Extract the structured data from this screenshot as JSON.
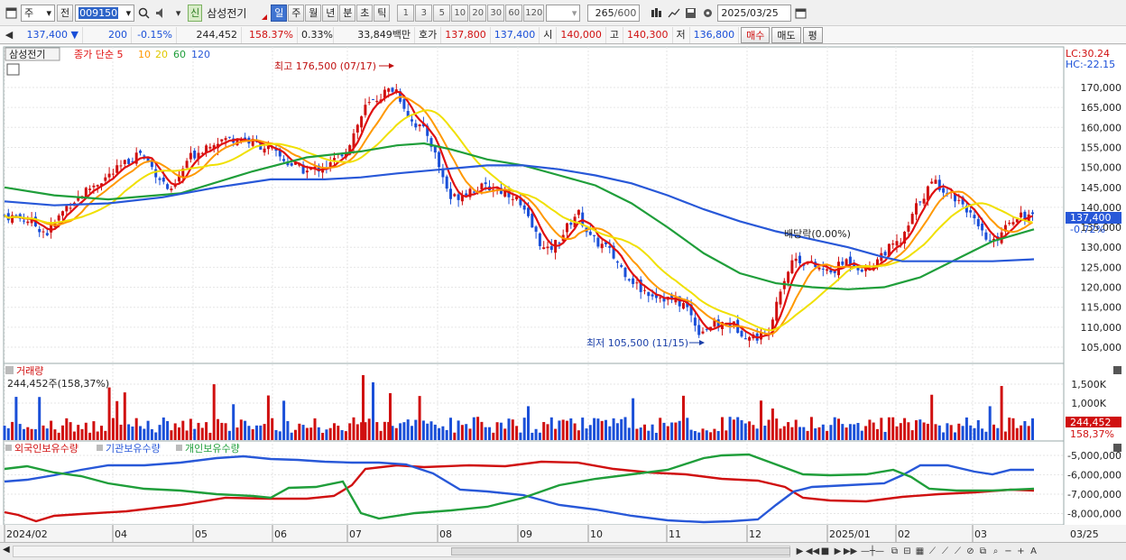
{
  "toolbar": {
    "market_label": "주",
    "prev_label": "전",
    "code": "009150",
    "stock_badge": "신",
    "stock_name": "삼성전기",
    "periods": [
      "일",
      "주",
      "월",
      "년",
      "분",
      "초",
      "틱"
    ],
    "active_period": "일",
    "numbers": [
      "1",
      "3",
      "5",
      "10",
      "20",
      "30",
      "60",
      "120"
    ],
    "count": "265",
    "count_max": "/600",
    "date": "2025/03/25"
  },
  "quote": {
    "price": "137,400",
    "change": "200",
    "change_pct": "-0.15%",
    "volume": "244,452",
    "volume_ratio": "158.37%",
    "turnover": "0.33%",
    "amount": "33,849백만",
    "ask_label": "호가",
    "ask": "137,800",
    "bid": "137,400",
    "open_label": "시",
    "open": "140,000",
    "high_label": "고",
    "high": "140,300",
    "low_label": "저",
    "low": "136,800",
    "buy_label": "매수",
    "sell_label": "매도",
    "eval_label": "평"
  },
  "price_panel": {
    "name_tag": "삼성전기",
    "ma_legend": [
      {
        "label": "종가 단순 5",
        "color": "#e01010"
      },
      {
        "label": "10",
        "color": "#ff9800"
      },
      {
        "label": "20",
        "color": "#f0e000"
      },
      {
        "label": "60",
        "color": "#1f9e3a"
      },
      {
        "label": "120",
        "color": "#2858d8"
      }
    ],
    "lc": "LC:30.24",
    "hc": "HC:-22.15",
    "high_annot": "최고 176,500 (07/17)",
    "low_annot": "최저 105,500 (11/15)",
    "dividend_annot": "배당락(0.00%)",
    "last_price_tag": "137,400",
    "last_pct_tag": "-0.72%",
    "y_ticks": [
      "170,000",
      "165,000",
      "160,000",
      "155,000",
      "150,000",
      "145,000",
      "140,000",
      "135,000",
      "130,000",
      "125,000",
      "120,000",
      "115,000",
      "110,000",
      "105,000"
    ]
  },
  "volume_panel": {
    "title": "거래량",
    "value": "244,452주(158,37%)",
    "y_ticks": [
      "1,500K",
      "1,000K"
    ],
    "tag_value": "244,452",
    "tag_pct": "158,37%"
  },
  "holder_panel": {
    "legend": [
      {
        "label": "외국인보유수량",
        "color": "#d01010"
      },
      {
        "label": "기관보유수량",
        "color": "#2858d8"
      },
      {
        "label": "개인보유수량",
        "color": "#1f9e3a"
      }
    ],
    "y_ticks": [
      "-5,000,000",
      "-6,000,000",
      "-7,000,000",
      "-8,000,000"
    ]
  },
  "x_axis": [
    "2024/02",
    "04",
    "05",
    "06",
    "07",
    "08",
    "09",
    "10",
    "11",
    "12",
    "2025/01",
    "02",
    "03"
  ],
  "x_axis_end": "03/25",
  "colors": {
    "up": "#d01010",
    "down": "#1a4fd8",
    "ma5": "#e01010",
    "ma10": "#ff9800",
    "ma20": "#f0e000",
    "ma60": "#1f9e3a",
    "ma120": "#2858d8"
  }
}
